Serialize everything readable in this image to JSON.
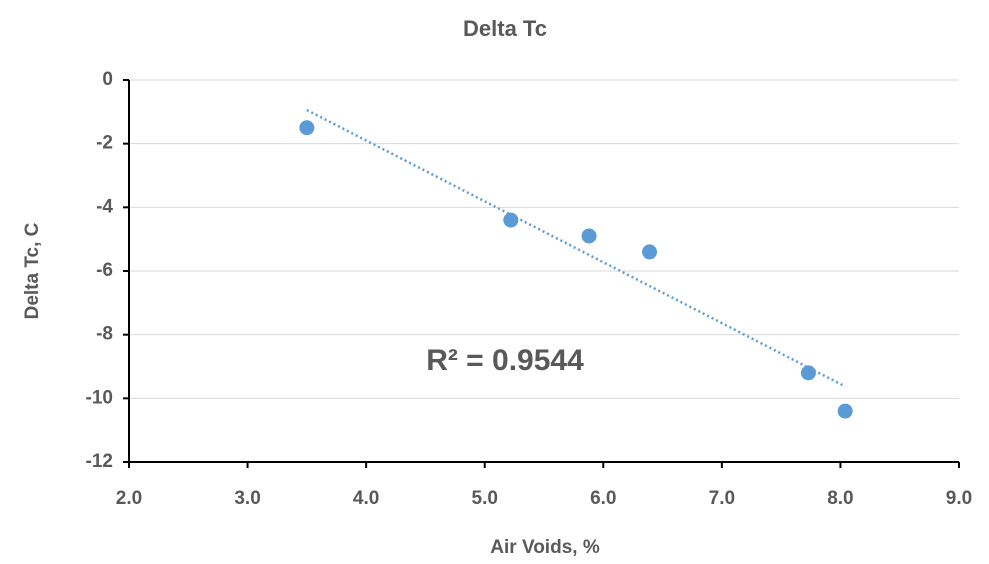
{
  "chart_data": {
    "type": "scatter",
    "title": "Delta Tc",
    "x_label": "Air Voids, %",
    "y_label": "Delta Tc, C",
    "series": [
      {
        "name": "Delta Tc",
        "color": "#5b9bd5",
        "x": [
          3.5,
          5.22,
          5.88,
          6.39,
          7.73,
          8.04
        ],
        "values": [
          -1.5,
          -4.4,
          -4.9,
          -5.4,
          -9.2,
          -10.4
        ]
      }
    ],
    "trendline": {
      "type": "linear",
      "style": "dotted"
    },
    "annotation": "R² = 0.9544",
    "xlim": [
      2,
      9
    ],
    "xticks": [
      {
        "value": 2,
        "label": "2.0"
      },
      {
        "value": 3,
        "label": "3.0"
      },
      {
        "value": 4,
        "label": "4.0"
      },
      {
        "value": 5,
        "label": "5.0"
      },
      {
        "value": 6,
        "label": "6.0"
      },
      {
        "value": 7,
        "label": "7.0"
      },
      {
        "value": 8,
        "label": "8.0"
      },
      {
        "value": 9,
        "label": "9.0"
      }
    ],
    "ylim": [
      -12,
      0
    ],
    "yticks": [
      -12,
      -10,
      -8,
      -6,
      -4,
      -2,
      0
    ],
    "grid": true
  }
}
